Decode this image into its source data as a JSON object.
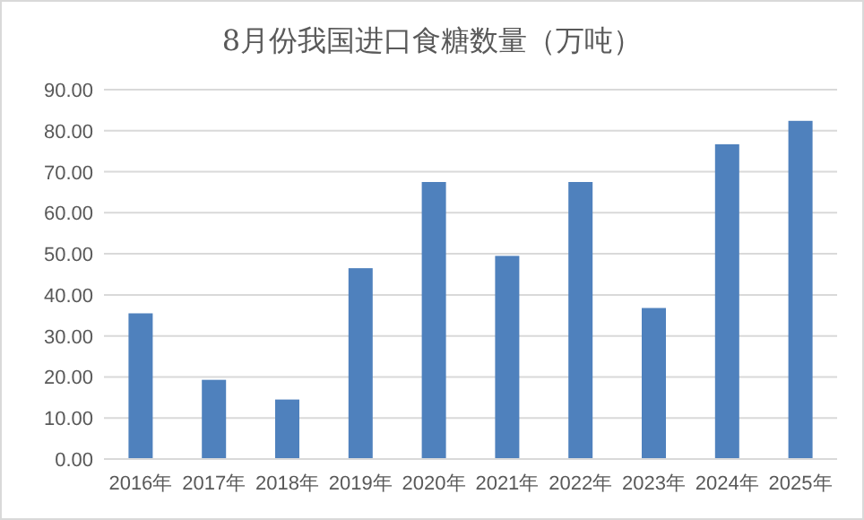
{
  "chart_data": {
    "type": "bar",
    "title": "8月份我国进口食糖数量（万吨）",
    "categories": [
      "2016年",
      "2017年",
      "2018年",
      "2019年",
      "2020年",
      "2021年",
      "2022年",
      "2023年",
      "2024年",
      "2025年"
    ],
    "values": [
      35.5,
      19.3,
      14.5,
      46.5,
      67.5,
      49.5,
      67.5,
      36.8,
      76.7,
      82.4
    ],
    "color": "#4f81bd",
    "ylim": [
      0,
      90
    ],
    "yticks": [
      {
        "value": 0,
        "label": "0.00"
      },
      {
        "value": 10,
        "label": "10.00"
      },
      {
        "value": 20,
        "label": "20.00"
      },
      {
        "value": 30,
        "label": "30.00"
      },
      {
        "value": 40,
        "label": "40.00"
      },
      {
        "value": 50,
        "label": "50.00"
      },
      {
        "value": 60,
        "label": "60.00"
      },
      {
        "value": 70,
        "label": "70.00"
      },
      {
        "value": 80,
        "label": "80.00"
      },
      {
        "value": 90,
        "label": "90.00"
      }
    ],
    "grid": "y"
  }
}
